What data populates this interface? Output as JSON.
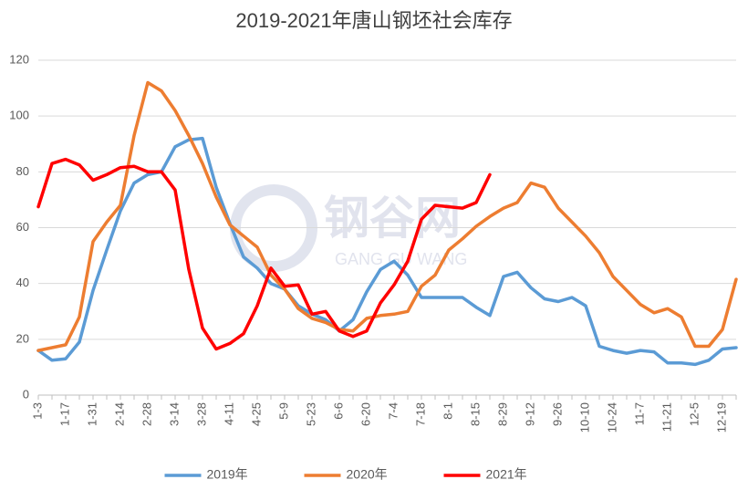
{
  "chart_data": {
    "type": "line",
    "title": "2019-2021年唐山钢坯社会库存",
    "watermark": [
      "钢谷网",
      "GANG GU WANG"
    ],
    "categories": [
      "1-3",
      null,
      "1-17",
      null,
      "1-31",
      null,
      "2-14",
      null,
      "2-28",
      null,
      "3-14",
      null,
      "3-28",
      null,
      "4-11",
      null,
      "4-25",
      null,
      "5-9",
      null,
      "5-23",
      null,
      "6-6",
      null,
      "6-20",
      null,
      "7-4",
      null,
      "7-18",
      null,
      "8-1",
      null,
      "8-15",
      null,
      "8-29",
      null,
      "9-12",
      null,
      "9-26",
      null,
      "10-10",
      null,
      "10-24",
      null,
      "11-7",
      null,
      "11-21",
      null,
      "12-5",
      null,
      "12-19",
      null
    ],
    "series": [
      {
        "name": "2019年",
        "color": "#5b9bd5",
        "values": [
          16,
          12.5,
          13,
          19,
          37.5,
          52,
          66,
          76,
          79,
          80,
          89,
          91.5,
          92,
          74.5,
          61.5,
          49.5,
          45.5,
          40,
          38,
          32,
          29,
          27,
          23,
          27,
          37,
          45,
          48,
          43,
          35,
          35,
          35,
          35,
          31.5,
          28.5,
          42.5,
          44,
          38.5,
          34.5,
          33.5,
          35,
          32,
          17.5,
          16,
          15,
          16,
          15.5,
          11.5,
          11.5,
          11,
          12.5,
          16.5,
          17
        ]
      },
      {
        "name": "2020年",
        "color": "#ed7d31",
        "values": [
          16,
          17,
          18,
          28,
          55,
          62,
          68,
          93,
          112,
          109,
          102,
          93,
          83,
          71,
          61,
          57,
          53,
          43,
          38,
          31,
          27.5,
          26,
          23.5,
          23,
          27.5,
          28.5,
          29,
          30,
          39,
          43,
          52,
          56,
          60.5,
          64,
          67,
          69,
          76,
          74.5,
          67,
          62,
          57,
          51,
          42.5,
          37.5,
          32.5,
          29.5,
          31,
          28,
          17.5,
          17.5,
          23.5,
          41.5
        ]
      },
      {
        "name": "2021年",
        "color": "#ff0000",
        "values": [
          67.5,
          83,
          84.5,
          82.5,
          77,
          79,
          81.5,
          82,
          80,
          80,
          73.5,
          45,
          24,
          16.5,
          18.5,
          22,
          32,
          45.5,
          39,
          39.5,
          29,
          30,
          23,
          21,
          23,
          33,
          39.5,
          48,
          63,
          68,
          67.5,
          67,
          69,
          79,
          null,
          null,
          null,
          null,
          null,
          null,
          null,
          null,
          null,
          null,
          null,
          null,
          null,
          null,
          null,
          null,
          null,
          null
        ]
      }
    ],
    "ylim": [
      0,
      120
    ],
    "yticks": [
      0,
      20,
      40,
      60,
      80,
      100,
      120
    ],
    "grid": true,
    "legend": "bottom"
  }
}
